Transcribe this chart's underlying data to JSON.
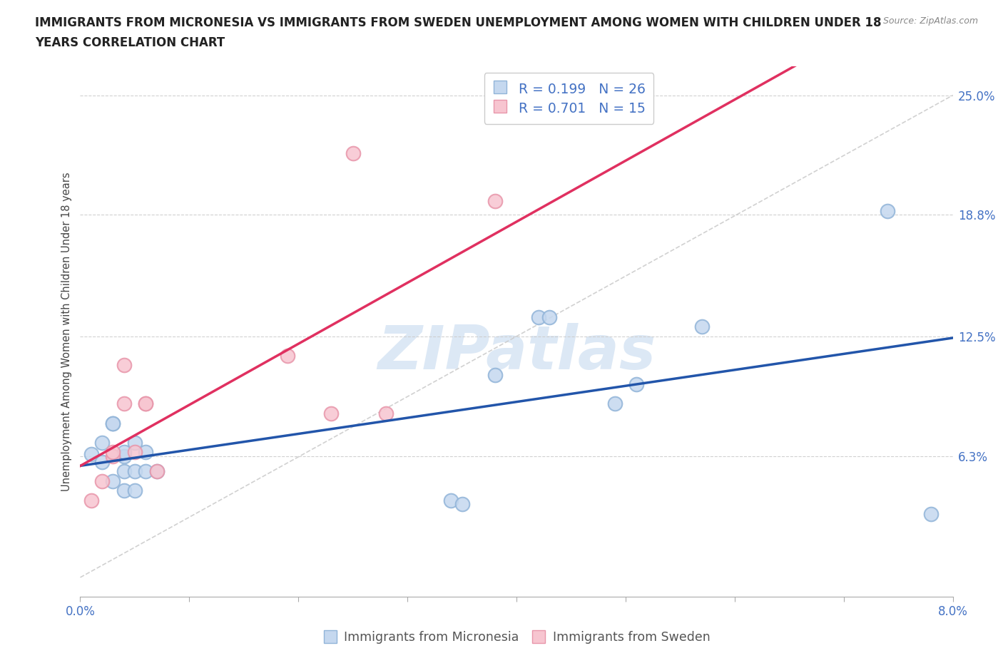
{
  "title_line1": "IMMIGRANTS FROM MICRONESIA VS IMMIGRANTS FROM SWEDEN UNEMPLOYMENT AMONG WOMEN WITH CHILDREN UNDER 18",
  "title_line2": "YEARS CORRELATION CHART",
  "source_text": "Source: ZipAtlas.com",
  "ylabel": "Unemployment Among Women with Children Under 18 years",
  "xlim": [
    0.0,
    0.08
  ],
  "ylim": [
    -0.01,
    0.265
  ],
  "yticks": [
    0.063,
    0.125,
    0.188,
    0.25
  ],
  "ytick_labels": [
    "6.3%",
    "12.5%",
    "18.8%",
    "25.0%"
  ],
  "xtick_positions": [
    0.0,
    0.01,
    0.02,
    0.03,
    0.04,
    0.05,
    0.06,
    0.07,
    0.08
  ],
  "xtick_labels": [
    "0.0%",
    "",
    "",
    "",
    "",
    "",
    "",
    "",
    "8.0%"
  ],
  "micronesia_color_face": "#c5d8ef",
  "micronesia_color_edge": "#91b4d8",
  "sweden_color_face": "#f7c5d0",
  "sweden_color_edge": "#e896aa",
  "micronesia_line_color": "#2255aa",
  "sweden_line_color": "#e03060",
  "diagonal_color": "#cccccc",
  "watermark_color": "#dce8f5",
  "legend_r1": "R = 0.199",
  "legend_n1": "N = 26",
  "legend_r2": "R = 0.701",
  "legend_n2": "N = 15",
  "micronesia_x": [
    0.001,
    0.002,
    0.002,
    0.003,
    0.003,
    0.003,
    0.004,
    0.004,
    0.004,
    0.004,
    0.005,
    0.005,
    0.005,
    0.006,
    0.006,
    0.007,
    0.034,
    0.035,
    0.038,
    0.042,
    0.043,
    0.049,
    0.051,
    0.057,
    0.074,
    0.078
  ],
  "micronesia_y": [
    0.064,
    0.07,
    0.06,
    0.08,
    0.08,
    0.05,
    0.063,
    0.065,
    0.055,
    0.045,
    0.055,
    0.045,
    0.07,
    0.065,
    0.055,
    0.055,
    0.04,
    0.038,
    0.105,
    0.135,
    0.135,
    0.09,
    0.1,
    0.13,
    0.19,
    0.033
  ],
  "sweden_x": [
    0.001,
    0.002,
    0.003,
    0.003,
    0.004,
    0.004,
    0.005,
    0.006,
    0.006,
    0.007,
    0.019,
    0.023,
    0.025,
    0.028,
    0.038
  ],
  "sweden_y": [
    0.04,
    0.05,
    0.063,
    0.065,
    0.09,
    0.11,
    0.065,
    0.09,
    0.09,
    0.055,
    0.115,
    0.085,
    0.22,
    0.085,
    0.195
  ],
  "background_color": "#ffffff",
  "grid_color": "#cccccc",
  "legend_micronesia_label": "Immigrants from Micronesia",
  "legend_sweden_label": "Immigrants from Sweden"
}
